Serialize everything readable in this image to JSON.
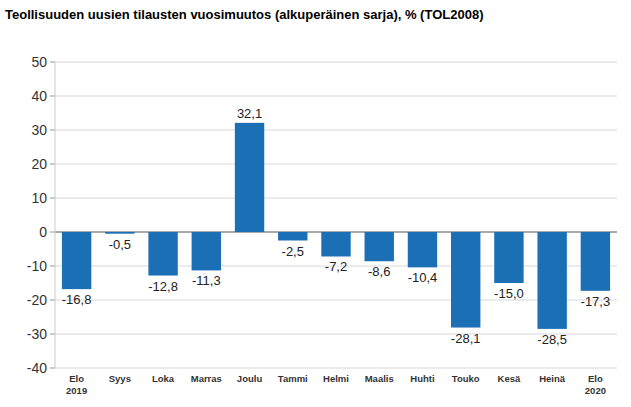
{
  "chart_data": {
    "type": "bar",
    "title": "Teollisuuden uusien tilausten vuosimuutos (alkuperäinen sarja), % (TOL2008)",
    "categories": [
      "Elo\n2019",
      "Syys",
      "Loka",
      "Marras",
      "Joulu",
      "Tammi",
      "Helmi",
      "Maalis",
      "Huhti",
      "Touko",
      "Kesä",
      "Heinä",
      "Elo\n2020"
    ],
    "values": [
      -16.8,
      -0.5,
      -12.8,
      -11.3,
      32.1,
      -2.5,
      -7.2,
      -8.6,
      -10.4,
      -28.1,
      -15.0,
      -28.5,
      -17.3
    ],
    "value_labels": [
      "-16,8",
      "-0,5",
      "-12,8",
      "-11,3",
      "32,1",
      "-2,5",
      "-7,2",
      "-8,6",
      "-10,4",
      "-28,1",
      "-15,0",
      "-28,5",
      "-17,3"
    ],
    "color": "#1b6fb5",
    "ylim": [
      -40,
      50
    ],
    "yticks": [
      -40,
      -30,
      -20,
      -10,
      0,
      10,
      20,
      30,
      40,
      50
    ],
    "grid": true,
    "data_labels": true
  }
}
